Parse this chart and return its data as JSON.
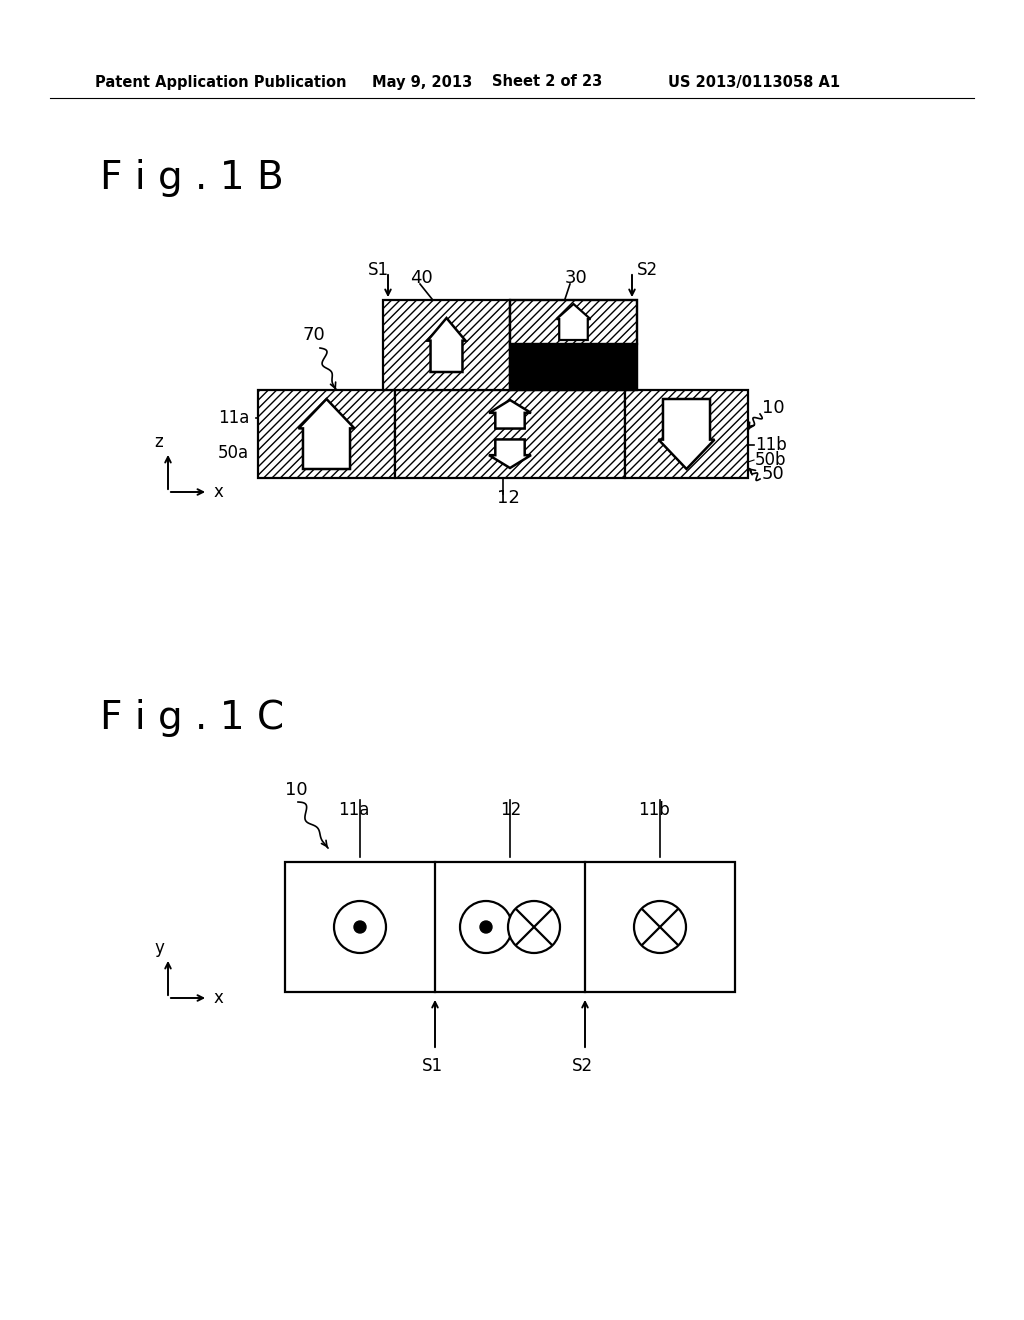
{
  "bg_color": "#ffffff",
  "header_text": "Patent Application Publication",
  "header_date": "May 9, 2013",
  "header_sheet": "Sheet 2 of 23",
  "header_patent": "US 2013/0113058 A1",
  "fig1b_title": "F i g . 1 B",
  "fig1c_title": "F i g . 1 C"
}
